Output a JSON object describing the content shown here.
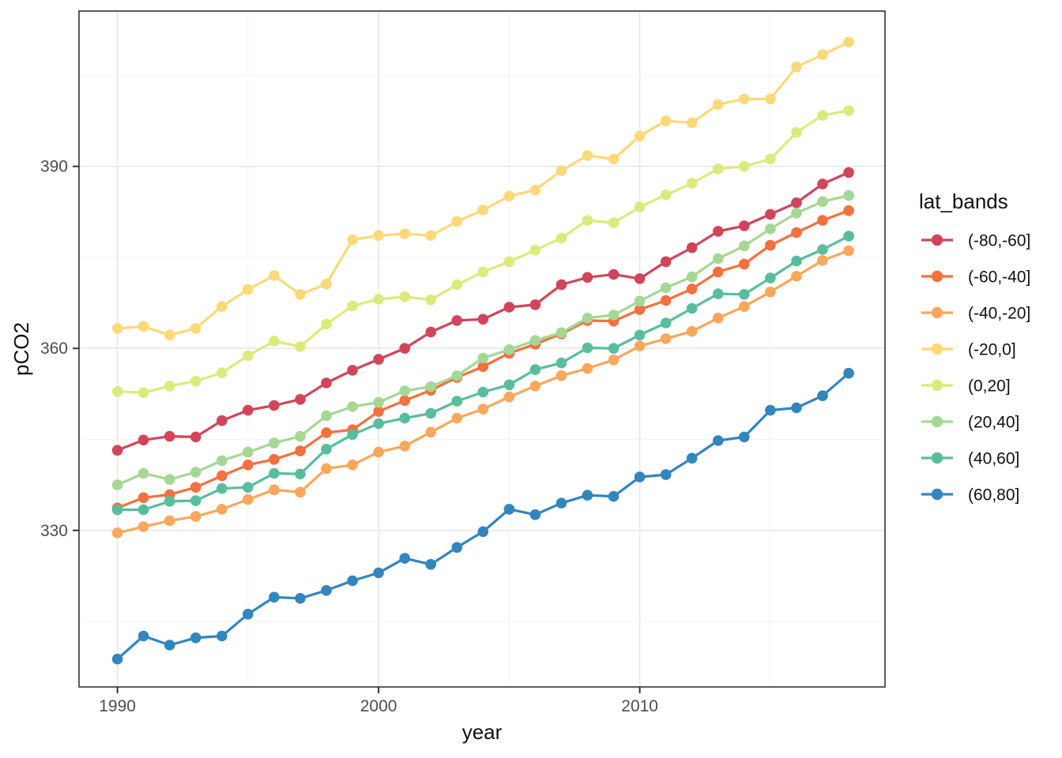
{
  "axis_titles": {
    "x": "year",
    "y": "pCO2"
  },
  "legend": {
    "title": "lat_bands"
  },
  "chart_data": {
    "type": "line",
    "title": "",
    "xlabel": "year",
    "ylabel": "pCO2",
    "legend_title": "lat_bands",
    "legend_position": "right",
    "grid": true,
    "x_domain": [
      1988.53,
      2019.39
    ],
    "y_domain": [
      304.2,
      415.6
    ],
    "x_ticks_major": [
      1990,
      2000,
      2010
    ],
    "x_ticks_minor": [
      1995,
      2005,
      2015
    ],
    "y_ticks_major": [
      330,
      360,
      390
    ],
    "y_ticks_minor": [
      315,
      345,
      375,
      405
    ],
    "x": [
      1990,
      1991,
      1992,
      1993,
      1994,
      1995,
      1996,
      1997,
      1998,
      1999,
      2000,
      2001,
      2002,
      2003,
      2004,
      2005,
      2006,
      2007,
      2008,
      2009,
      2010,
      2011,
      2012,
      2013,
      2014,
      2015,
      2016,
      2017,
      2018
    ],
    "series": [
      {
        "name": "(-80,-60]",
        "color": "#d0455a",
        "values": [
          343.2,
          344.9,
          345.5,
          345.4,
          348.1,
          349.8,
          350.6,
          351.6,
          354.3,
          356.4,
          358.2,
          360.0,
          362.7,
          364.6,
          364.8,
          366.8,
          367.2,
          370.5,
          371.7,
          372.2,
          371.5,
          374.3,
          376.6,
          379.3,
          380.2,
          382.1,
          384.0,
          387.1,
          389.0
        ]
      },
      {
        "name": "(-60,-40]",
        "color": "#f4703e",
        "values": [
          333.7,
          335.4,
          335.9,
          337.1,
          339.0,
          340.8,
          341.7,
          343.1,
          346.1,
          346.6,
          349.6,
          351.4,
          353.1,
          355.2,
          357.0,
          359.2,
          360.7,
          362.4,
          364.6,
          364.5,
          366.4,
          367.9,
          369.8,
          372.6,
          373.9,
          377.0,
          379.1,
          381.1,
          382.7
        ]
      },
      {
        "name": "(-40,-20]",
        "color": "#f9a75d",
        "values": [
          329.6,
          330.6,
          331.6,
          332.3,
          333.5,
          335.1,
          336.7,
          336.3,
          340.2,
          340.8,
          342.9,
          343.9,
          346.2,
          348.5,
          350.0,
          352.0,
          353.8,
          355.5,
          356.7,
          358.1,
          360.4,
          361.6,
          362.8,
          365.0,
          366.9,
          369.3,
          371.9,
          374.5,
          376.1
        ]
      },
      {
        "name": "(-20,0]",
        "color": "#fbd97a",
        "values": [
          363.3,
          363.6,
          362.2,
          363.3,
          366.9,
          369.7,
          372.0,
          368.9,
          370.6,
          377.9,
          378.6,
          378.9,
          378.6,
          380.9,
          382.8,
          385.1,
          386.1,
          389.3,
          391.8,
          391.2,
          395.0,
          397.5,
          397.2,
          400.2,
          401.1,
          401.1,
          406.4,
          408.4,
          410.5
        ]
      },
      {
        "name": "(0,20]",
        "color": "#dcea7d",
        "values": [
          352.9,
          352.7,
          353.8,
          354.6,
          356.0,
          358.8,
          361.2,
          360.3,
          364.0,
          367.0,
          368.1,
          368.5,
          368.0,
          370.5,
          372.6,
          374.3,
          376.2,
          378.2,
          381.1,
          380.7,
          383.3,
          385.3,
          387.2,
          389.6,
          390.0,
          391.2,
          395.6,
          398.4,
          399.2
        ]
      },
      {
        "name": "(20,40]",
        "color": "#a5d795",
        "values": [
          337.5,
          339.4,
          338.4,
          339.6,
          341.5,
          342.9,
          344.4,
          345.5,
          348.9,
          350.4,
          351.1,
          353.0,
          353.7,
          355.5,
          358.4,
          359.8,
          361.3,
          362.6,
          365.0,
          365.5,
          367.8,
          370.0,
          371.8,
          374.8,
          376.9,
          379.7,
          382.3,
          384.2,
          385.2
        ]
      },
      {
        "name": "(40,60]",
        "color": "#58bd9c",
        "values": [
          333.4,
          333.4,
          334.8,
          334.9,
          336.9,
          337.1,
          339.4,
          339.3,
          343.4,
          345.8,
          347.6,
          348.5,
          349.3,
          351.3,
          352.8,
          354.0,
          356.5,
          357.6,
          360.1,
          360.0,
          362.2,
          364.2,
          366.6,
          369.0,
          368.9,
          371.6,
          374.4,
          376.3,
          378.5
        ]
      },
      {
        "name": "(60,80]",
        "color": "#3286bd",
        "values": [
          308.8,
          312.6,
          311.1,
          312.3,
          312.6,
          316.2,
          319.0,
          318.8,
          320.1,
          321.7,
          323.0,
          325.4,
          324.4,
          327.2,
          329.8,
          333.5,
          332.6,
          334.5,
          335.8,
          335.6,
          338.8,
          339.2,
          341.9,
          344.8,
          345.4,
          349.8,
          350.2,
          352.2,
          355.9
        ]
      }
    ]
  }
}
